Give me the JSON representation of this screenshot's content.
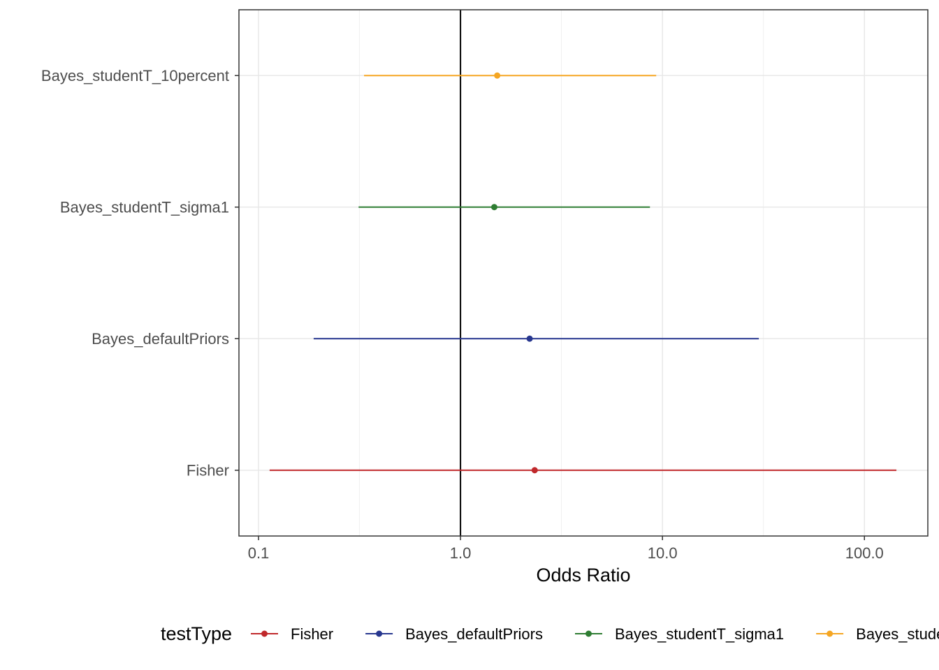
{
  "chart_data": {
    "type": "forest",
    "x_label": "Odds Ratio",
    "legend_title": "testType",
    "categories": [
      "Fisher",
      "Bayes_defaultPriors",
      "Bayes_studentT_sigma1",
      "Bayes_studentT_10percent"
    ],
    "series": [
      {
        "name": "Fisher",
        "color": "#c0282b",
        "value": 2.33,
        "low": 0.1135,
        "high": 144
      },
      {
        "name": "Bayes_defaultPriors",
        "color": "#27378f",
        "value": 2.2,
        "low": 0.1875,
        "high": 30
      },
      {
        "name": "Bayes_studentT_sigma1",
        "color": "#2e7d32",
        "value": 1.47,
        "low": 0.313,
        "high": 8.67
      },
      {
        "name": "Bayes_studentT_10percent",
        "color": "#f5a623",
        "value": 1.52,
        "low": 0.333,
        "high": 9.31
      }
    ],
    "x_log_scale": true,
    "xlim": [
      0.08,
      206
    ],
    "xticks": [
      0.1,
      {
        "value": 1,
        "label": "1.0"
      },
      {
        "value": 10,
        "label": "10.0"
      },
      {
        "value": 100,
        "label": "100.0"
      }
    ],
    "x_minor_ticks": [
      0.316,
      3.16,
      31.6
    ],
    "reference_line": 1,
    "grid": true,
    "legend_position": "bottom"
  }
}
